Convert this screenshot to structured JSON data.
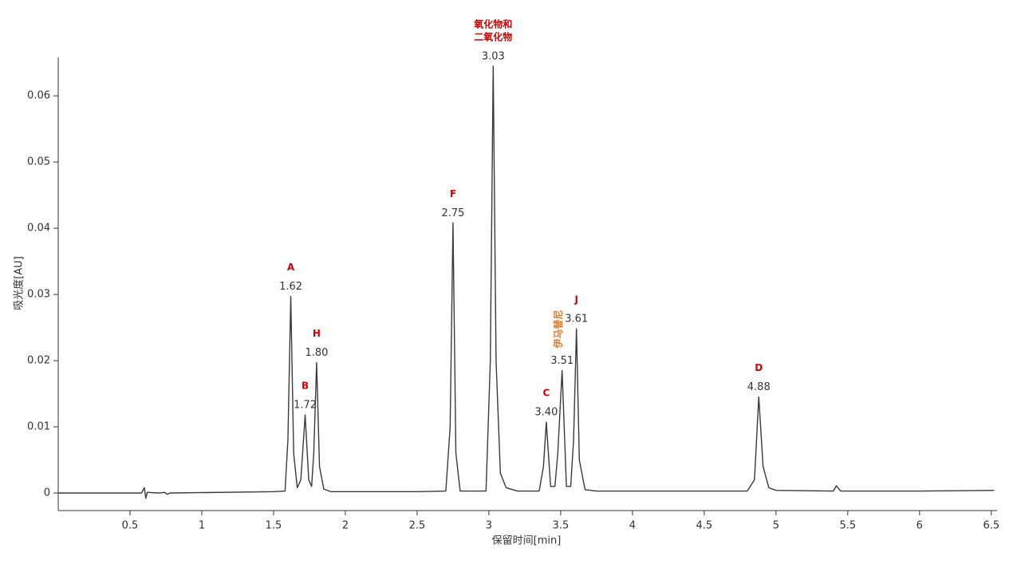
{
  "chart_data": {
    "type": "line",
    "x_label": "保留时间[min]",
    "y_label": "吸光度[AU]",
    "xlim": [
      0,
      6.54
    ],
    "ylim": [
      -0.00265,
      0.0658
    ],
    "xticks": [
      0.5,
      1,
      1.5,
      2,
      2.5,
      3,
      3.5,
      4,
      4.5,
      5,
      5.5,
      6,
      6.5
    ],
    "yticks": [
      0,
      0.01,
      0.02,
      0.03,
      0.04,
      0.05,
      0.06
    ],
    "grid": false,
    "x": [
      0,
      0.58,
      0.6,
      0.61,
      0.62,
      0.7,
      0.74,
      0.76,
      0.78,
      1.5,
      1.58,
      1.6,
      1.62,
      1.64,
      1.665,
      1.69,
      1.72,
      1.745,
      1.765,
      1.78,
      1.8,
      1.82,
      1.85,
      1.9,
      2.5,
      2.7,
      2.73,
      2.75,
      2.77,
      2.8,
      2.98,
      3.01,
      3.03,
      3.05,
      3.08,
      3.12,
      3.2,
      3.35,
      3.38,
      3.4,
      3.43,
      3.46,
      3.48,
      3.51,
      3.54,
      3.57,
      3.59,
      3.61,
      3.63,
      3.67,
      3.75,
      4.8,
      4.85,
      4.88,
      4.91,
      4.95,
      5.0,
      5.4,
      5.42,
      5.45,
      6.0,
      6.52
    ],
    "series": [
      {
        "color": "#3a3a3a",
        "values": [
          0,
          0,
          0.0008,
          -0.0008,
          0.0001,
          0,
          0.0001,
          -0.0002,
          0,
          0.0002,
          0.0003,
          0.008,
          0.0297,
          0.006,
          0.0008,
          0.002,
          0.0118,
          0.002,
          0.001,
          0.006,
          0.0197,
          0.004,
          0.0006,
          0.0002,
          0.0002,
          0.0003,
          0.01,
          0.0408,
          0.006,
          0.0003,
          0.0003,
          0.02,
          0.0645,
          0.02,
          0.003,
          0.0008,
          0.0003,
          0.0003,
          0.004,
          0.0107,
          0.001,
          0.001,
          0.006,
          0.0185,
          0.001,
          0.001,
          0.008,
          0.0248,
          0.005,
          0.0005,
          0.0003,
          0.0003,
          0.002,
          0.0145,
          0.004,
          0.0008,
          0.0004,
          0.0003,
          0.0011,
          0.0003,
          0.0003,
          0.0004
        ]
      }
    ],
    "peaks": [
      {
        "name": [
          "A"
        ],
        "x": 1.62,
        "y": 0.0297,
        "label": "1.62",
        "color": "#d40000"
      },
      {
        "name": [
          "B"
        ],
        "x": 1.72,
        "y": 0.0118,
        "label": "1.72",
        "color": "#d40000"
      },
      {
        "name": [
          "H"
        ],
        "x": 1.8,
        "y": 0.0197,
        "label": "1.80",
        "color": "#d40000"
      },
      {
        "name": [
          "F"
        ],
        "x": 2.75,
        "y": 0.0408,
        "label": "2.75",
        "color": "#d40000"
      },
      {
        "name": [
          "氧化物和",
          "二氧化物"
        ],
        "x": 3.03,
        "y": 0.0645,
        "label": "3.03",
        "color": "#d40000"
      },
      {
        "name": [
          "C"
        ],
        "x": 3.4,
        "y": 0.0107,
        "label": "3.40",
        "color": "#d40000"
      },
      {
        "name": [
          "伊马替尼"
        ],
        "x": 3.51,
        "y": 0.0185,
        "label": "3.51",
        "color": "#e07a2a",
        "rotated": true
      },
      {
        "name": [
          "J"
        ],
        "x": 3.61,
        "y": 0.0248,
        "label": "3.61",
        "color": "#d40000"
      },
      {
        "name": [
          "D"
        ],
        "x": 4.88,
        "y": 0.0145,
        "label": "4.88",
        "color": "#d40000"
      }
    ]
  }
}
